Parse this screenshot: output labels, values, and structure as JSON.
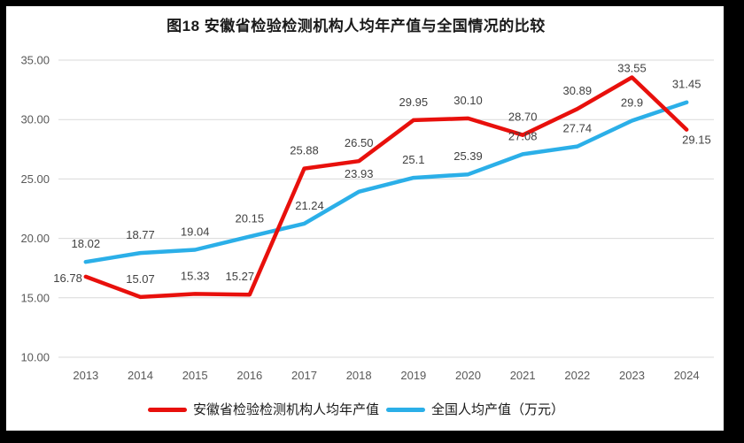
{
  "frame": {
    "background": "#000000",
    "content_background": "#ffffff"
  },
  "chart_data": {
    "type": "line",
    "title": "图18 安徽省检验检测机构人均年产值与全国情况的比较",
    "categories": [
      "2013",
      "2014",
      "2015",
      "2016",
      "2017",
      "2018",
      "2019",
      "2020",
      "2021",
      "2022",
      "2023",
      "2024"
    ],
    "series": [
      {
        "name": "安徽省检验检测机构人均年产值",
        "color": "#e8100c",
        "values": [
          16.78,
          15.07,
          15.33,
          15.27,
          25.88,
          26.5,
          29.95,
          30.1,
          28.7,
          30.89,
          33.55,
          29.15
        ],
        "labels": [
          "16.78",
          "15.07",
          "15.33",
          "15.27",
          "25.88",
          "26.50",
          "29.95",
          "30.10",
          "28.70",
          "30.89",
          "33.55",
          "29.15"
        ]
      },
      {
        "name": "全国人均产值（万元）",
        "color": "#2bafe8",
        "values": [
          18.02,
          18.77,
          19.04,
          20.15,
          21.24,
          23.93,
          25.1,
          25.39,
          27.08,
          27.74,
          29.9,
          31.45
        ],
        "labels": [
          "18.02",
          "18.77",
          "19.04",
          "20.15",
          "21.24",
          "23.93",
          "25.1",
          "25.39",
          "27.08",
          "27.74",
          "29.9",
          "31.45"
        ]
      }
    ],
    "y_axis": {
      "min": 10,
      "max": 35,
      "step": 5,
      "ticks": [
        "35.00",
        "30.00",
        "25.00",
        "20.00",
        "15.00",
        "10.00"
      ]
    },
    "x_axis": {
      "ticks": [
        "2013",
        "2014",
        "2015",
        "2016",
        "2017",
        "2018",
        "2019",
        "2020",
        "2021",
        "2022",
        "2023",
        "2024"
      ]
    },
    "grid": "horizontal",
    "grid_color": "#d9d9d9",
    "axis_color": "#595959",
    "label_color": "#404040",
    "legend_position": "bottom",
    "label_overrides": {
      "0-0": {
        "dx": -4,
        "dy": 22,
        "anchor": "end"
      },
      "0-3": {
        "dx": -11
      },
      "0-10": {
        "dy": 10
      },
      "0-11": {
        "dx": -5,
        "dy": 32,
        "anchor": "start"
      },
      "1-4": {
        "dx": 6
      }
    }
  }
}
